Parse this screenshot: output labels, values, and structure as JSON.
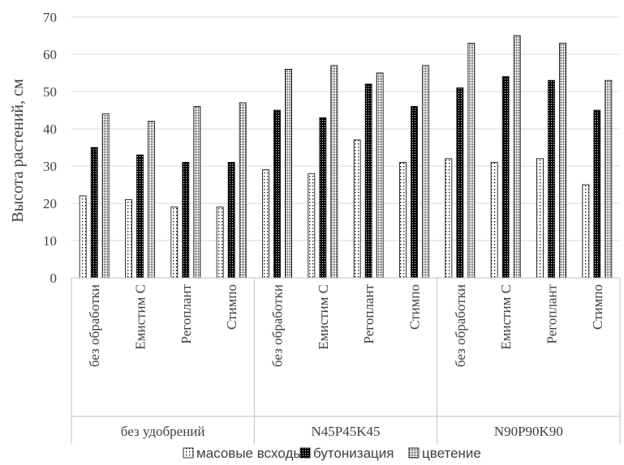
{
  "chart_data": {
    "type": "bar",
    "ylabel": "Высота растений, см",
    "xlabel": "",
    "ylim": [
      0,
      70
    ],
    "yticks": [
      0,
      10,
      20,
      30,
      40,
      50,
      60,
      70
    ],
    "grid": true,
    "legend_position": "bottom",
    "groups": [
      {
        "label": "без удобрений",
        "categories": [
          "без обработки",
          "Емистим С",
          "Регоплант",
          "Стимпо"
        ]
      },
      {
        "label": "N45P45K45",
        "categories": [
          "без обработки",
          "Емистим С",
          "Регоплант",
          "Стимпо"
        ]
      },
      {
        "label": "N90P90K90",
        "categories": [
          "без обработки",
          "Емистим С",
          "Регоплант",
          "Стимпо"
        ]
      }
    ],
    "series": [
      {
        "name": "масовые всходы",
        "pattern": "sparse-dots",
        "values": [
          22,
          21,
          19,
          19,
          29,
          28,
          37,
          31,
          32,
          31,
          32,
          25
        ]
      },
      {
        "name": "бутонизация",
        "pattern": "dense-dark",
        "values": [
          35,
          33,
          31,
          31,
          45,
          43,
          52,
          46,
          51,
          54,
          53,
          45
        ]
      },
      {
        "name": "цветение",
        "pattern": "fine-dots",
        "values": [
          44,
          42,
          46,
          47,
          56,
          57,
          55,
          57,
          63,
          65,
          63,
          53
        ]
      }
    ]
  }
}
